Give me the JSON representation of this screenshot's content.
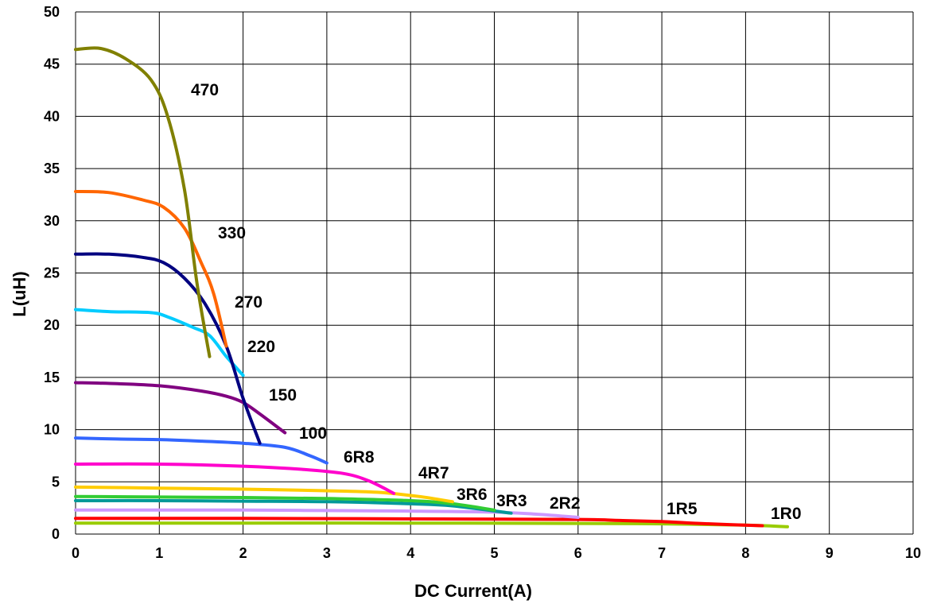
{
  "chart_data": {
    "type": "line",
    "title": "",
    "xlabel": "DC Current(A)",
    "ylabel": "L(uH)",
    "xlim": [
      0,
      10
    ],
    "ylim": [
      0,
      50
    ],
    "x_ticks": [
      "0",
      "1",
      "2",
      "3",
      "4",
      "5",
      "6",
      "7",
      "8",
      "9",
      "10"
    ],
    "y_ticks": [
      "0",
      "5",
      "10",
      "15",
      "20",
      "25",
      "30",
      "35",
      "40",
      "45",
      "50"
    ],
    "grid": true,
    "legend": "none (series labeled inline)",
    "series": [
      {
        "name": "470",
        "color": "#808000",
        "x": [
          0,
          0.3,
          0.6,
          0.9,
          1.1,
          1.3,
          1.45,
          1.6
        ],
        "y": [
          46.4,
          46.5,
          45.5,
          43.5,
          40,
          33,
          24,
          17
        ]
      },
      {
        "name": "330",
        "color": "#FF6600",
        "x": [
          0,
          0.4,
          0.8,
          1.05,
          1.3,
          1.5,
          1.65,
          1.8
        ],
        "y": [
          32.8,
          32.7,
          32.0,
          31.3,
          29.3,
          26,
          23,
          18
        ]
      },
      {
        "name": "270",
        "color": "#000080",
        "x": [
          0,
          0.4,
          0.8,
          1.05,
          1.3,
          1.55,
          1.8,
          2.0,
          2.2
        ],
        "y": [
          26.8,
          26.8,
          26.5,
          26.0,
          24.5,
          22,
          18,
          13,
          8.7
        ]
      },
      {
        "name": "220",
        "color": "#00CCFF",
        "x": [
          0,
          0.4,
          0.9,
          1.1,
          1.4,
          1.6,
          1.8,
          2.0
        ],
        "y": [
          21.5,
          21.3,
          21.2,
          20.8,
          19.8,
          19.0,
          17.0,
          15.2
        ]
      },
      {
        "name": "150",
        "color": "#800080",
        "x": [
          0,
          0.5,
          1.0,
          1.5,
          1.8,
          2.0,
          2.2,
          2.5
        ],
        "y": [
          14.5,
          14.4,
          14.2,
          13.7,
          13.2,
          12.6,
          11.5,
          9.7
        ]
      },
      {
        "name": "100",
        "color": "#3366FF",
        "x": [
          0,
          0.5,
          1.0,
          1.5,
          2.0,
          2.5,
          2.8,
          3.0
        ],
        "y": [
          9.2,
          9.1,
          9.05,
          8.9,
          8.7,
          8.3,
          7.5,
          6.8
        ]
      },
      {
        "name": "6R8",
        "color": "#FF00CC",
        "x": [
          0,
          1.0,
          2.0,
          2.7,
          3.2,
          3.5,
          3.8
        ],
        "y": [
          6.7,
          6.7,
          6.5,
          6.2,
          5.8,
          5.1,
          3.9
        ]
      },
      {
        "name": "4R7",
        "color": "#FFCC00",
        "x": [
          0,
          1.0,
          2.0,
          3.0,
          3.6,
          4.1,
          4.5
        ],
        "y": [
          4.5,
          4.4,
          4.3,
          4.15,
          4.0,
          3.6,
          3.1
        ]
      },
      {
        "name": "3R6",
        "color": "#33CC33",
        "x": [
          0,
          1.0,
          2.0,
          3.0,
          4.0,
          4.5,
          5.0
        ],
        "y": [
          3.6,
          3.55,
          3.5,
          3.4,
          3.2,
          2.9,
          2.3
        ]
      },
      {
        "name": "3R3",
        "color": "#009999",
        "x": [
          0,
          1.0,
          2.0,
          3.0,
          4.0,
          4.5,
          5.2
        ],
        "y": [
          3.2,
          3.2,
          3.15,
          3.1,
          2.9,
          2.7,
          2.0
        ]
      },
      {
        "name": "2R2",
        "color": "#CC99FF",
        "x": [
          0,
          1.0,
          2.0,
          3.0,
          4.0,
          5.0,
          5.5,
          6.0
        ],
        "y": [
          2.3,
          2.3,
          2.3,
          2.25,
          2.2,
          2.1,
          1.9,
          1.6
        ]
      },
      {
        "name": "1R5",
        "color": "#FF0000",
        "x": [
          0,
          2.0,
          4.0,
          6.0,
          6.5,
          7.0,
          7.5,
          8.2
        ],
        "y": [
          1.5,
          1.5,
          1.45,
          1.4,
          1.3,
          1.2,
          1.0,
          0.8
        ]
      },
      {
        "name": "1R0",
        "color": "#99CC00",
        "x": [
          0,
          2.0,
          4.0,
          6.0,
          7.0,
          8.0,
          8.5
        ],
        "y": [
          1.05,
          1.05,
          1.05,
          1.02,
          0.98,
          0.85,
          0.7
        ]
      }
    ]
  }
}
